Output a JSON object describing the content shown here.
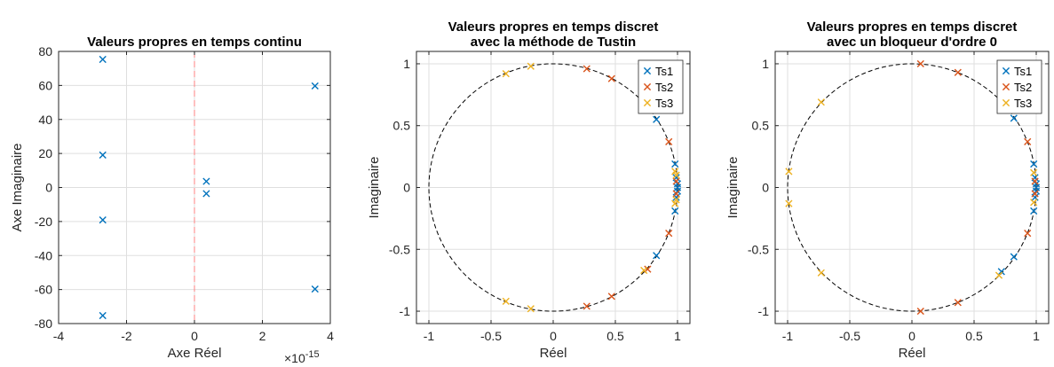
{
  "chart_data": [
    {
      "type": "scatter",
      "title": [
        "Valeurs propres en temps continu"
      ],
      "xlabel": "Axe Réel",
      "ylabel": "Axe Imaginaire",
      "x_exponent_label": "×10",
      "x_exponent_power": "-15",
      "xlim": [
        -4,
        4
      ],
      "ylim": [
        -80,
        80
      ],
      "xticks": [
        -4,
        -2,
        0,
        2,
        4
      ],
      "yticks": [
        -80,
        -60,
        -40,
        -20,
        0,
        20,
        40,
        60,
        80
      ],
      "xtick_labels": [
        "-4",
        "-2",
        "0",
        "2",
        "4"
      ],
      "ytick_labels": [
        "-80",
        "-60",
        "-40",
        "-20",
        "0",
        "20",
        "40",
        "60",
        "80"
      ],
      "grid": true,
      "reference_line": {
        "x": 0,
        "style": "dashed",
        "color": "#ff8080"
      },
      "series": [
        {
          "marker": "x",
          "color": "#0072BD",
          "points": [
            [
              -2.7,
              75.3
            ],
            [
              -2.7,
              19.1
            ],
            [
              -2.7,
              -19.1
            ],
            [
              -2.7,
              -75.3
            ],
            [
              0.35,
              3.6
            ],
            [
              0.35,
              -3.6
            ],
            [
              3.55,
              59.7
            ],
            [
              3.55,
              -59.7
            ]
          ]
        }
      ]
    },
    {
      "type": "scatter",
      "title": [
        "Valeurs propres en temps discret",
        "avec la méthode de Tustin"
      ],
      "xlabel": "Réel",
      "ylabel": "Imaginaire",
      "xlim": [
        -1.1,
        1.1
      ],
      "ylim": [
        -1.1,
        1.1
      ],
      "xticks": [
        -1,
        -0.5,
        0,
        0.5,
        1
      ],
      "yticks": [
        -1,
        -0.5,
        0,
        0.5,
        1
      ],
      "xtick_labels": [
        "-1",
        "-0.5",
        "0",
        "0.5",
        "1"
      ],
      "ytick_labels": [
        "-1",
        "-0.5",
        "0",
        "0.5",
        "1"
      ],
      "grid": true,
      "unit_circle": true,
      "legend_position": "top-right",
      "series": [
        {
          "name": "Ts1",
          "marker": "x",
          "color": "#0072BD",
          "points": [
            [
              0.83,
              0.55
            ],
            [
              0.83,
              -0.55
            ],
            [
              0.98,
              0.19
            ],
            [
              0.98,
              -0.19
            ],
            [
              0.99,
              0.08
            ],
            [
              0.99,
              -0.08
            ],
            [
              1.0,
              0.0
            ],
            [
              1.0,
              0.03
            ],
            [
              1.0,
              -0.03
            ]
          ]
        },
        {
          "name": "Ts2",
          "marker": "x",
          "color": "#D95319",
          "points": [
            [
              0.27,
              0.96
            ],
            [
              0.27,
              -0.96
            ],
            [
              0.47,
              0.88
            ],
            [
              0.47,
              -0.88
            ],
            [
              0.93,
              0.37
            ],
            [
              0.93,
              -0.37
            ],
            [
              0.99,
              0.05
            ],
            [
              0.99,
              -0.05
            ],
            [
              0.76,
              -0.66
            ]
          ]
        },
        {
          "name": "Ts3",
          "marker": "x",
          "color": "#EDB120",
          "points": [
            [
              -0.38,
              0.92
            ],
            [
              -0.38,
              -0.92
            ],
            [
              -0.18,
              0.98
            ],
            [
              -0.18,
              -0.98
            ],
            [
              0.98,
              0.13
            ],
            [
              0.98,
              -0.13
            ],
            [
              0.99,
              0.1
            ],
            [
              0.99,
              -0.1
            ],
            [
              0.73,
              -0.67
            ]
          ]
        }
      ]
    },
    {
      "type": "scatter",
      "title": [
        "Valeurs propres en temps discret",
        "avec un bloqueur d'ordre 0"
      ],
      "xlabel": "Réel",
      "ylabel": "Imaginaire",
      "xlim": [
        -1.1,
        1.1
      ],
      "ylim": [
        -1.1,
        1.1
      ],
      "xticks": [
        -1,
        -0.5,
        0,
        0.5,
        1
      ],
      "yticks": [
        -1,
        -0.5,
        0,
        0.5,
        1
      ],
      "xtick_labels": [
        "-1",
        "-0.5",
        "0",
        "0.5",
        "1"
      ],
      "ytick_labels": [
        "-1",
        "-0.5",
        "0",
        "0.5",
        "1"
      ],
      "grid": true,
      "unit_circle": true,
      "legend_position": "top-right",
      "series": [
        {
          "name": "Ts1",
          "marker": "x",
          "color": "#0072BD",
          "points": [
            [
              0.82,
              0.56
            ],
            [
              0.82,
              -0.56
            ],
            [
              0.98,
              0.19
            ],
            [
              0.98,
              -0.19
            ],
            [
              0.99,
              0.08
            ],
            [
              0.99,
              -0.08
            ],
            [
              1.0,
              0.0
            ],
            [
              1.0,
              0.03
            ],
            [
              1.0,
              -0.03
            ],
            [
              0.72,
              -0.68
            ]
          ]
        },
        {
          "name": "Ts2",
          "marker": "x",
          "color": "#D95319",
          "points": [
            [
              0.07,
              1.0
            ],
            [
              0.07,
              -1.0
            ],
            [
              0.37,
              0.93
            ],
            [
              0.37,
              -0.93
            ],
            [
              0.93,
              0.37
            ],
            [
              0.93,
              -0.37
            ],
            [
              0.99,
              0.05
            ],
            [
              0.99,
              -0.05
            ]
          ]
        },
        {
          "name": "Ts3",
          "marker": "x",
          "color": "#EDB120",
          "points": [
            [
              -0.73,
              0.69
            ],
            [
              -0.73,
              -0.69
            ],
            [
              -0.99,
              0.13
            ],
            [
              -0.99,
              -0.13
            ],
            [
              0.98,
              0.12
            ],
            [
              0.98,
              -0.12
            ],
            [
              0.7,
              -0.71
            ]
          ]
        }
      ]
    }
  ]
}
